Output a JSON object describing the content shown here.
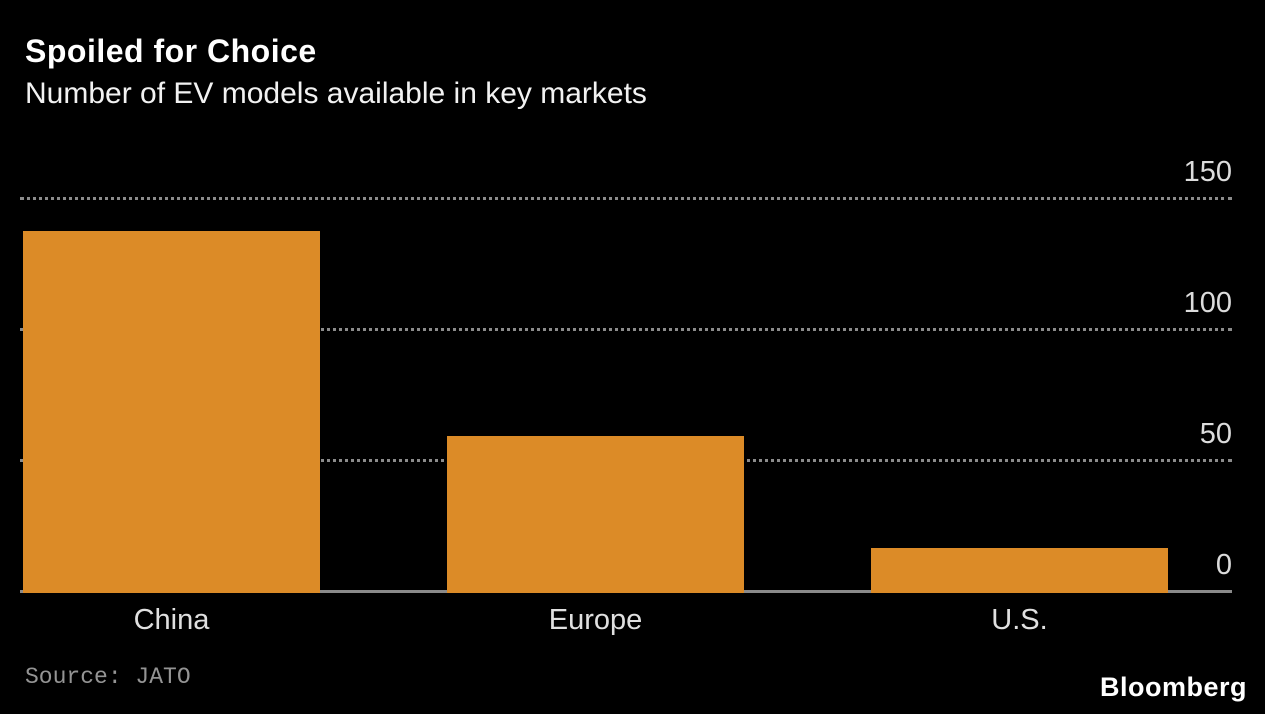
{
  "header": {
    "title": "Spoiled for Choice",
    "subtitle": "Number of EV models available in key markets"
  },
  "footer": {
    "source": "Source: JATO",
    "brand": "Bloomberg"
  },
  "colors": {
    "background": "#000000",
    "bar": "#DC8B27",
    "gridline": "#8c8c8c",
    "axis_line": "#8a8a8a",
    "tick_label": "#dcdcdc",
    "category_label": "#e0e0e0",
    "title": "#ffffff",
    "subtitle": "#f2f2f2",
    "source": "#949494",
    "brand": "#ffffff"
  },
  "chart_data": {
    "type": "bar",
    "title": "Spoiled for Choice",
    "subtitle": "Number of EV models available in key markets",
    "categories": [
      "China",
      "Europe",
      "U.S."
    ],
    "values": [
      138,
      60,
      17
    ],
    "xlabel": "",
    "ylabel": "",
    "ylim": [
      0,
      150
    ],
    "yticks": [
      0,
      50,
      100,
      150
    ],
    "ytick_side": "right",
    "grid": "horizontal-dotted",
    "legend": "none",
    "bar_color": "#DC8B27",
    "source": "JATO"
  }
}
